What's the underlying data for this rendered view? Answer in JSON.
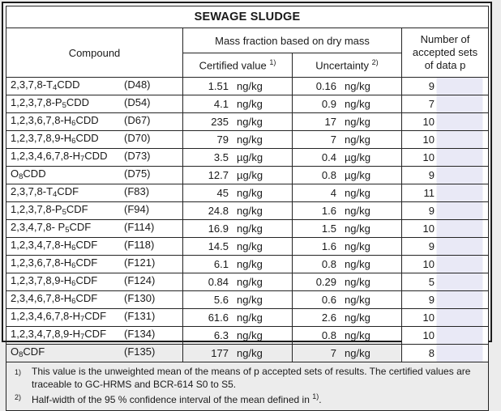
{
  "title": "SEWAGE SLUDGE",
  "header": {
    "compound": "Compound",
    "mass_fraction": "Mass fraction based on dry mass",
    "certified_label": "Certified value",
    "certified_sup": "1)",
    "uncertainty_label": "Uncertainty",
    "uncertainty_sup": "2)",
    "sets": "Number of accepted sets of data p"
  },
  "rows": [
    {
      "pre": "2,3,7,8-T",
      "sub": "4",
      "post": "CDD",
      "code": "(D48)",
      "value": "1.51",
      "vunit": "ng/kg",
      "unc": "0.16",
      "uunit": "ng/kg",
      "sets": "9"
    },
    {
      "pre": "1,2,3,7,8-P",
      "sub": "5",
      "post": "CDD",
      "code": "(D54)",
      "value": "4.1",
      "vunit": "ng/kg",
      "unc": "0.9",
      "uunit": "ng/kg",
      "sets": "7"
    },
    {
      "pre": "1,2,3,6,7,8-H",
      "sub": "6",
      "post": "CDD",
      "code": "(D67)",
      "value": "235",
      "vunit": "ng/kg",
      "unc": "17",
      "uunit": "ng/kg",
      "sets": "10"
    },
    {
      "pre": "1,2,3,7,8,9-H",
      "sub": "6",
      "post": "CDD",
      "code": "(D70)",
      "value": "79",
      "vunit": "ng/kg",
      "unc": "7",
      "uunit": "ng/kg",
      "sets": "10"
    },
    {
      "pre": "1,2,3,4,6,7,8-H",
      "sub": "7",
      "post": "CDD",
      "code": "(D73)",
      "value": "3.5",
      "vunit": "µg/kg",
      "unc": "0.4",
      "uunit": "µg/kg",
      "sets": "10"
    },
    {
      "pre": "O",
      "sub": "8",
      "post": "CDD",
      "code": "(D75)",
      "value": "12.7",
      "vunit": "µg/kg",
      "unc": "0.8",
      "uunit": "µg/kg",
      "sets": "9"
    },
    {
      "pre": "2,3,7,8-T",
      "sub": "4",
      "post": "CDF",
      "code": "(F83)",
      "value": "45",
      "vunit": "ng/kg",
      "unc": "4",
      "uunit": "ng/kg",
      "sets": "11"
    },
    {
      "pre": "1,2,3,7,8-P",
      "sub": "5",
      "post": "CDF",
      "code": "(F94)",
      "value": "24.8",
      "vunit": "ng/kg",
      "unc": "1.6",
      "uunit": "ng/kg",
      "sets": "9"
    },
    {
      "pre": "2,3,4,7,8- P",
      "sub": "5",
      "post": "CDF",
      "code": "(F114)",
      "value": "16.9",
      "vunit": "ng/kg",
      "unc": "1.5",
      "uunit": "ng/kg",
      "sets": "10"
    },
    {
      "pre": "1,2,3,4,7,8-H",
      "sub": "6",
      "post": "CDF",
      "code": "(F118)",
      "value": "14.5",
      "vunit": "ng/kg",
      "unc": "1.6",
      "uunit": "ng/kg",
      "sets": "9"
    },
    {
      "pre": "1,2,3,6,7,8-H",
      "sub": "6",
      "post": "CDF",
      "code": "(F121)",
      "value": "6.1",
      "vunit": "ng/kg",
      "unc": "0.8",
      "uunit": "ng/kg",
      "sets": "10"
    },
    {
      "pre": "1,2,3,7,8,9-H",
      "sub": "6",
      "post": "CDF",
      "code": "(F124)",
      "value": "0.84",
      "vunit": "ng/kg",
      "unc": "0.29",
      "uunit": "ng/kg",
      "sets": "5"
    },
    {
      "pre": "2,3,4,6,7,8-H",
      "sub": "6",
      "post": "CDF",
      "code": "(F130)",
      "value": "5.6",
      "vunit": "ng/kg",
      "unc": "0.6",
      "uunit": "ng/kg",
      "sets": "9"
    },
    {
      "pre": "1,2,3,4,6,7,8-H",
      "sub": "7",
      "post": "CDF",
      "code": "(F131)",
      "value": "61.6",
      "vunit": "ng/kg",
      "unc": "2.6",
      "uunit": "ng/kg",
      "sets": "10"
    },
    {
      "pre": "1,2,3,4,7,8,9-H",
      "sub": "7",
      "post": "CDF",
      "code": "(F134)",
      "value": "6.3",
      "vunit": "ng/kg",
      "unc": "0.8",
      "uunit": "ng/kg",
      "sets": "10"
    },
    {
      "pre": "O",
      "sub": "8",
      "post": "CDF",
      "code": "(F135)",
      "value": "177",
      "vunit": "ng/kg",
      "unc": "7",
      "uunit": "ng/kg",
      "sets": "8"
    }
  ],
  "footnotes": [
    {
      "marker": "1)",
      "text": "This value is the unweighted mean of the means of p accepted sets of results. The certified values are traceable to GC-HRMS and BCR-614 S0 to S5."
    },
    {
      "marker": "2)",
      "text": "Half-width of the 95 % confidence interval of the mean defined in ",
      "sup": "1)",
      "tail": "."
    }
  ],
  "colors": {
    "highlight": "#e9e9f6",
    "border": "#242424",
    "text": "#1a1a1a",
    "page_background": "#ececec"
  }
}
